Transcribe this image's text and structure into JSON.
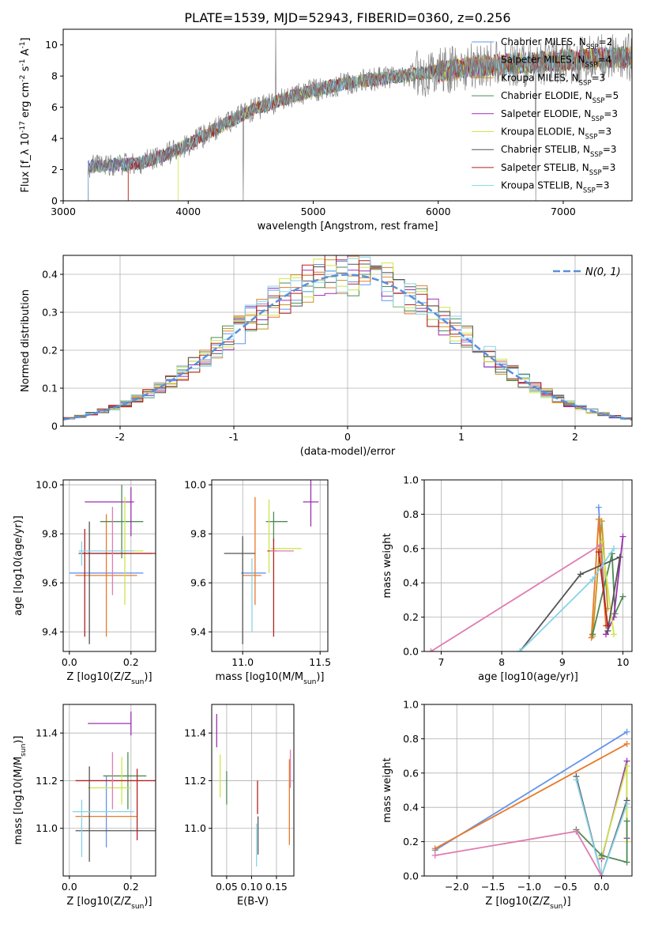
{
  "figure_title": "PLATE=1539, MJD=52943, FIBERID=0360, z=0.256",
  "colors": {
    "chabrier_miles": "#6495ed",
    "salpeter_miles": "#e87a2a",
    "kroupa_miles": "#c8941e",
    "chabrier_elodie": "#4f8a55",
    "salpeter_elodie": "#9b30b0",
    "kroupa_elodie": "#cde64a",
    "chabrier_stelib": "#555555",
    "salpeter_stelib": "#b22222",
    "kroupa_stelib": "#87d3e8",
    "pink": "#e07bb0",
    "data": "#808080",
    "gaussian": "#5b8fdc"
  },
  "chart_data": [
    {
      "id": "spectrum",
      "type": "line",
      "title": "PLATE=1539, MJD=52943, FIBERID=0360, z=0.256",
      "xlabel": "wavelength [Angstrom, rest frame]",
      "ylabel": "Flux [f_λ 10^-17 erg cm^-2 s^-1 A^-1]",
      "xlim": [
        3000,
        7550
      ],
      "ylim": [
        0,
        11
      ],
      "xticks": [
        3000,
        4000,
        5000,
        6000,
        7000
      ],
      "yticks": [
        0,
        2,
        4,
        6,
        8,
        10
      ],
      "grid": false,
      "legend_position": "top-right",
      "legend": [
        "Chabrier MILES, N_SSP=2",
        "Salpeter MILES, N_SSP=4",
        "Kroupa MILES, N_SSP=3",
        "Chabrier ELODIE, N_SSP=5",
        "Salpeter ELODIE, N_SSP=3",
        "Kroupa ELODIE, N_SSP=3",
        "Chabrier STELIB, N_SSP=3",
        "Salpeter STELIB, N_SSP=3",
        "Kroupa STELIB, N_SSP=3"
      ],
      "continuum": {
        "x": [
          3200,
          3400,
          3600,
          3800,
          4000,
          4200,
          4500,
          4800,
          5000,
          5300,
          5600,
          6000,
          6300,
          6600,
          7000,
          7400
        ],
        "y": [
          2.2,
          2.3,
          2.4,
          2.9,
          3.6,
          4.5,
          5.8,
          6.6,
          7.1,
          7.6,
          7.9,
          8.3,
          8.6,
          8.8,
          9.0,
          9.2
        ]
      },
      "model_start": [
        3200,
        3520,
        3200,
        3200,
        3200,
        3920,
        3200,
        3520,
        3200
      ]
    },
    {
      "id": "residual_histogram",
      "type": "bar",
      "xlabel": "(data-model)/error",
      "ylabel": "Normed distribution",
      "xlim": [
        -2.5,
        2.5
      ],
      "ylim": [
        0,
        0.45
      ],
      "xticks": [
        -2,
        -1,
        0,
        1,
        2
      ],
      "yticks": [
        0.0,
        0.1,
        0.2,
        0.3,
        0.4
      ],
      "grid": true,
      "legend_position": "top-right",
      "legend": [
        "N(0, 1)"
      ],
      "bin_width": 0.1,
      "gaussian": {
        "mean": 0,
        "sigma": 1
      }
    },
    {
      "id": "age_vs_Z",
      "type": "scatter",
      "xlabel": "Z [log10(Z/Z_sun)]",
      "ylabel": "age [log10(age/yr)]",
      "xlim": [
        -0.02,
        0.28
      ],
      "ylim": [
        9.32,
        10.02
      ],
      "xticks": [
        "0.0",
        "0.2"
      ],
      "yticks": [
        "9.4",
        "9.6",
        "9.8",
        "10.0"
      ],
      "grid": true,
      "points": [
        {
          "series": 0,
          "x": 0.12,
          "y": 9.64,
          "xerr": 0.12,
          "yerr": 0.0
        },
        {
          "series": 1,
          "x": 0.12,
          "y": 9.63,
          "xerr": 0.1,
          "yerr": 0.25
        },
        {
          "series": 3,
          "x": 0.17,
          "y": 9.85,
          "xerr": 0.07,
          "yerr": 0.15
        },
        {
          "series": 4,
          "x": 0.13,
          "y": 9.93,
          "xerr": 0.08,
          "yerr": 0.0
        },
        {
          "series": 4,
          "x": 0.2,
          "y": 9.89,
          "xerr": 0.0,
          "yerr": 0.1
        },
        {
          "series": 5,
          "x": 0.18,
          "y": 9.73,
          "xerr": 0.06,
          "yerr": 0.22
        },
        {
          "series": 6,
          "x": 0.15,
          "y": 9.72,
          "xerr": 0.12,
          "yerr": 0.0
        },
        {
          "series": 6,
          "x": 0.065,
          "y": 9.6,
          "xerr": 0.0,
          "yerr": 0.25
        },
        {
          "series": 7,
          "x": 0.05,
          "y": 9.6,
          "xerr": 0.0,
          "yerr": 0.22
        },
        {
          "series": 7,
          "x": 0.16,
          "y": 9.72,
          "xerr": 0.12,
          "yerr": 0.0
        },
        {
          "series": 8,
          "x": 0.12,
          "y": 9.73,
          "xerr": 0.09,
          "yerr": 0.0
        },
        {
          "series": 8,
          "x": 0.04,
          "y": 9.72,
          "xerr": 0.0,
          "yerr": 0.05
        },
        {
          "series": 9,
          "x": 0.14,
          "y": 9.73,
          "xerr": 0.0,
          "yerr": 0.18
        }
      ]
    },
    {
      "id": "age_vs_mass",
      "type": "scatter",
      "xlabel": "mass [log10(M/M_sun)]",
      "ylabel": "",
      "xlim": [
        10.8,
        11.55
      ],
      "ylim": [
        9.32,
        10.02
      ],
      "xticks": [
        "11.0",
        "11.5"
      ],
      "yticks": [
        "9.4",
        "9.6",
        "9.8",
        "10.0"
      ],
      "grid": true,
      "points": [
        {
          "series": 0,
          "x": 11.07,
          "y": 9.64,
          "xerr": 0.08,
          "yerr": 0.0
        },
        {
          "series": 1,
          "x": 11.08,
          "y": 9.73,
          "xerr": 0.0,
          "yerr": 0.22
        },
        {
          "series": 1,
          "x": 11.06,
          "y": 9.63,
          "xerr": 0.06,
          "yerr": 0.0
        },
        {
          "series": 3,
          "x": 11.22,
          "y": 9.85,
          "xerr": 0.07,
          "yerr": 0.0
        },
        {
          "series": 3,
          "x": 11.2,
          "y": 9.83,
          "xerr": 0.0,
          "yerr": 0.06
        },
        {
          "series": 4,
          "x": 11.44,
          "y": 9.93,
          "xerr": 0.05,
          "yerr": 0.1
        },
        {
          "series": 5,
          "x": 11.17,
          "y": 9.79,
          "xerr": 0.0,
          "yerr": 0.15
        },
        {
          "series": 5,
          "x": 11.28,
          "y": 9.74,
          "xerr": 0.1,
          "yerr": 0.0
        },
        {
          "series": 6,
          "x": 10.98,
          "y": 9.72,
          "xerr": 0.1,
          "yerr": 0.0
        },
        {
          "series": 6,
          "x": 11.0,
          "y": 9.57,
          "xerr": 0.0,
          "yerr": 0.22
        },
        {
          "series": 7,
          "x": 11.2,
          "y": 9.58,
          "xerr": 0.0,
          "yerr": 0.2
        },
        {
          "series": 7,
          "x": 11.19,
          "y": 9.73,
          "xerr": 0.03,
          "yerr": 0.0
        },
        {
          "series": 8,
          "x": 11.06,
          "y": 9.55,
          "xerr": 0.0,
          "yerr": 0.15
        },
        {
          "series": 9,
          "x": 11.25,
          "y": 9.73,
          "xerr": 0.08,
          "yerr": 0.0
        }
      ]
    },
    {
      "id": "weight_vs_age",
      "type": "line",
      "xlabel": "age [log10(age/yr)]",
      "ylabel": "mass weight",
      "xlim": [
        6.72,
        10.15
      ],
      "ylim": [
        0,
        1.0
      ],
      "xticks": [
        "7",
        "8",
        "9",
        "10"
      ],
      "yticks": [
        "0.0",
        "0.2",
        "0.4",
        "0.6",
        "0.8",
        "1.0"
      ],
      "grid": true,
      "series": [
        {
          "series": 0,
          "x": [
            9.6,
            9.73
          ],
          "y": [
            0.84,
            0.15
          ]
        },
        {
          "series": 1,
          "x": [
            9.48,
            9.6,
            9.72
          ],
          "y": [
            0.08,
            0.77,
            0.15
          ]
        },
        {
          "series": 2,
          "x": [
            9.5,
            9.65,
            9.75
          ],
          "y": [
            0.09,
            0.76,
            0.25
          ]
        },
        {
          "series": 3,
          "x": [
            9.5,
            9.82,
            9.87,
            10.0
          ],
          "y": [
            0.1,
            0.57,
            0.22,
            0.32
          ]
        },
        {
          "series": 4,
          "x": [
            9.72,
            9.85,
            10.0
          ],
          "y": [
            0.1,
            0.2,
            0.67
          ]
        },
        {
          "series": 5,
          "x": [
            9.65,
            9.85
          ],
          "y": [
            0.64,
            0.1
          ]
        },
        {
          "series": 6,
          "x": [
            8.3,
            9.3,
            9.95,
            9.75
          ],
          "y": [
            0.0,
            0.45,
            0.55,
            0.12
          ]
        },
        {
          "series": 7,
          "x": [
            9.6,
            9.75
          ],
          "y": [
            0.58,
            0.15
          ]
        },
        {
          "series": 8,
          "x": [
            8.3,
            9.5,
            9.85
          ],
          "y": [
            0.0,
            0.42,
            0.6
          ]
        },
        {
          "series": 9,
          "x": [
            6.83,
            9.63
          ],
          "y": [
            0.0,
            0.62
          ]
        }
      ]
    },
    {
      "id": "mass_vs_Z",
      "type": "scatter",
      "xlabel": "Z [log10(Z/Z_sun)]",
      "ylabel": "mass [log10(M/M_sun)]",
      "xlim": [
        -0.02,
        0.28
      ],
      "ylim": [
        10.8,
        11.52
      ],
      "xticks": [
        "0.0",
        "0.2"
      ],
      "yticks": [
        "11.0",
        "11.2",
        "11.4"
      ],
      "grid": true,
      "points": [
        {
          "series": 0,
          "x": 0.12,
          "y": 11.07,
          "xerr": 0.0,
          "yerr": 0.15
        },
        {
          "series": 1,
          "x": 0.12,
          "y": 11.05,
          "xerr": 0.1,
          "yerr": 0.0
        },
        {
          "series": 3,
          "x": 0.18,
          "y": 11.22,
          "xerr": 0.07,
          "yerr": 0.0
        },
        {
          "series": 3,
          "x": 0.19,
          "y": 11.2,
          "xerr": 0.0,
          "yerr": 0.12
        },
        {
          "series": 4,
          "x": 0.13,
          "y": 11.44,
          "xerr": 0.07,
          "yerr": 0.0
        },
        {
          "series": 4,
          "x": 0.2,
          "y": 11.44,
          "xerr": 0.0,
          "yerr": 0.05
        },
        {
          "series": 5,
          "x": 0.13,
          "y": 11.17,
          "xerr": 0.07,
          "yerr": 0.0
        },
        {
          "series": 5,
          "x": 0.17,
          "y": 11.2,
          "xerr": 0.0,
          "yerr": 0.1
        },
        {
          "series": 6,
          "x": 0.15,
          "y": 10.99,
          "xerr": 0.13,
          "yerr": 0.0
        },
        {
          "series": 6,
          "x": 0.065,
          "y": 11.06,
          "xerr": 0.0,
          "yerr": 0.2
        },
        {
          "series": 7,
          "x": 0.15,
          "y": 11.2,
          "xerr": 0.13,
          "yerr": 0.0
        },
        {
          "series": 7,
          "x": 0.22,
          "y": 11.1,
          "xerr": 0.0,
          "yerr": 0.15
        },
        {
          "series": 8,
          "x": 0.11,
          "y": 11.07,
          "xerr": 0.1,
          "yerr": 0.0
        },
        {
          "series": 8,
          "x": 0.04,
          "y": 11.0,
          "xerr": 0.0,
          "yerr": 0.12
        },
        {
          "series": 9,
          "x": 0.14,
          "y": 11.2,
          "xerr": 0.0,
          "yerr": 0.12
        }
      ]
    },
    {
      "id": "mass_vs_ebv",
      "type": "scatter",
      "xlabel": "E(B-V)",
      "ylabel": "",
      "xlim": [
        0.02,
        0.185
      ],
      "ylim": [
        10.8,
        11.52
      ],
      "xticks": [
        "0.05",
        "0.10",
        "0.15"
      ],
      "yticks": [
        "11.0",
        "11.2",
        "11.4"
      ],
      "grid": true,
      "points": [
        {
          "series": 4,
          "x": 0.03,
          "y": 11.41,
          "xerr": 0.0,
          "yerr": 0.07
        },
        {
          "series": 5,
          "x": 0.037,
          "y": 11.22,
          "xerr": 0.0,
          "yerr": 0.09
        },
        {
          "series": 3,
          "x": 0.05,
          "y": 11.17,
          "xerr": 0.0,
          "yerr": 0.07
        },
        {
          "series": 7,
          "x": 0.112,
          "y": 11.13,
          "xerr": 0.0,
          "yerr": 0.07
        },
        {
          "series": 6,
          "x": 0.113,
          "y": 10.97,
          "xerr": 0.0,
          "yerr": 0.08
        },
        {
          "series": 8,
          "x": 0.11,
          "y": 10.93,
          "xerr": 0.0,
          "yerr": 0.09
        },
        {
          "series": 1,
          "x": 0.176,
          "y": 11.11,
          "xerr": 0.0,
          "yerr": 0.18
        },
        {
          "series": 9,
          "x": 0.178,
          "y": 11.25,
          "xerr": 0.0,
          "yerr": 0.08
        }
      ]
    },
    {
      "id": "weight_vs_Z",
      "type": "line",
      "xlabel": "Z [log10(Z/Z_sun)]",
      "ylabel": "mass weight",
      "xlim": [
        -2.45,
        0.42
      ],
      "ylim": [
        0,
        1.0
      ],
      "xticks": [
        "−2.0",
        "−1.5",
        "−1.0",
        "−0.5",
        "0.0"
      ],
      "yticks": [
        "0.0",
        "0.2",
        "0.4",
        "0.6",
        "0.8",
        "1.0"
      ],
      "grid": true,
      "series": [
        {
          "series": 0,
          "x": [
            -2.3,
            0.35
          ],
          "y": [
            0.15,
            0.84
          ]
        },
        {
          "series": 1,
          "x": [
            -2.3,
            0.35
          ],
          "y": [
            0.16,
            0.77
          ]
        },
        {
          "series": 4,
          "x": [
            0.0,
            0.35,
            0.35
          ],
          "y": [
            0.1,
            0.67,
            0.22
          ]
        },
        {
          "series": 5,
          "x": [
            0.0,
            0.35,
            0.35
          ],
          "y": [
            0.11,
            0.64,
            0.2
          ]
        },
        {
          "series": 3,
          "x": [
            -0.35,
            0.0,
            0.35,
            0.35
          ],
          "y": [
            0.27,
            0.12,
            0.08,
            0.32
          ]
        },
        {
          "series": 6,
          "x": [
            -0.35,
            0.0,
            0.35
          ],
          "y": [
            0.58,
            0.0,
            0.44
          ]
        },
        {
          "series": 8,
          "x": [
            -0.35,
            0.0,
            0.35
          ],
          "y": [
            0.56,
            0.0,
            0.42
          ]
        },
        {
          "series": 9,
          "x": [
            -2.3,
            -0.35,
            0.0
          ],
          "y": [
            0.12,
            0.26,
            0.0
          ]
        }
      ]
    }
  ]
}
